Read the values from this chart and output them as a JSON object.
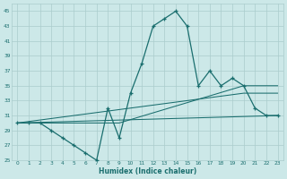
{
  "xlabel": "Humidex (Indice chaleur)",
  "bg_color": "#cce8e8",
  "grid_color": "#aacccc",
  "line_color": "#1a6e6e",
  "xlim": [
    -0.5,
    23.5
  ],
  "ylim": [
    25,
    46
  ],
  "xticks": [
    0,
    1,
    2,
    3,
    4,
    5,
    6,
    7,
    8,
    9,
    10,
    11,
    12,
    13,
    14,
    15,
    16,
    17,
    18,
    19,
    20,
    21,
    22,
    23
  ],
  "yticks": [
    25,
    27,
    29,
    31,
    33,
    35,
    37,
    39,
    41,
    43,
    45
  ],
  "main_x": [
    0,
    1,
    2,
    3,
    4,
    5,
    6,
    7,
    8,
    9,
    10,
    11,
    12,
    13,
    14,
    15,
    16,
    17,
    18,
    19,
    20,
    21,
    22,
    23
  ],
  "main_y": [
    30,
    30,
    30,
    29,
    28,
    27,
    26,
    25,
    32,
    28,
    34,
    38,
    43,
    44,
    45,
    43,
    35,
    37,
    35,
    36,
    35,
    32,
    31,
    31
  ],
  "trend1_x": [
    0,
    9,
    20,
    23
  ],
  "trend1_y": [
    30,
    30,
    35,
    35
  ],
  "trend2_x": [
    0,
    20,
    23
  ],
  "trend2_y": [
    30,
    34,
    34
  ],
  "trend3_x": [
    0,
    23
  ],
  "trend3_y": [
    30,
    31
  ]
}
